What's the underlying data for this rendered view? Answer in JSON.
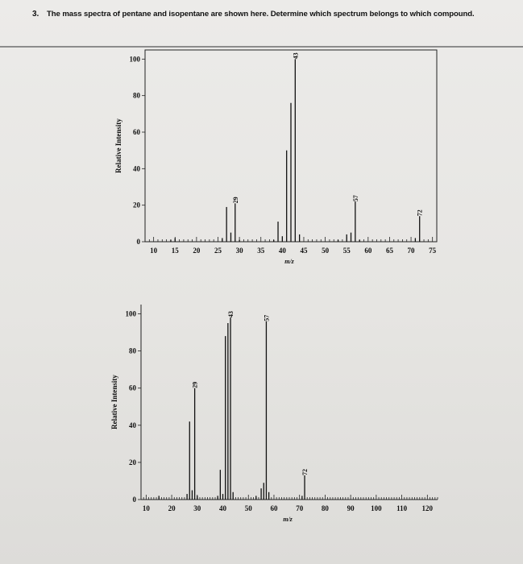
{
  "header": {
    "question_number": "3.",
    "question_text": "The mass spectra of pentane and isopentane are shown here. Determine which spectrum belongs to which compound."
  },
  "chart_data": [
    {
      "type": "bar",
      "title": "",
      "xlabel": "m/z",
      "ylabel": "Relative Intensity",
      "xlim": [
        8,
        76
      ],
      "ylim": [
        0,
        105
      ],
      "x_ticks": [
        10,
        15,
        20,
        25,
        30,
        35,
        40,
        45,
        50,
        55,
        60,
        65,
        70,
        75
      ],
      "y_ticks": [
        0,
        20,
        40,
        60,
        80,
        100
      ],
      "peak_labels": [
        {
          "x": 29,
          "text": "29"
        },
        {
          "x": 43,
          "text": "43"
        },
        {
          "x": 57,
          "text": "57"
        },
        {
          "x": 72,
          "text": "72"
        }
      ],
      "peaks": [
        {
          "x": 14,
          "y": 1
        },
        {
          "x": 15,
          "y": 2
        },
        {
          "x": 26,
          "y": 2
        },
        {
          "x": 27,
          "y": 19
        },
        {
          "x": 28,
          "y": 5
        },
        {
          "x": 29,
          "y": 21
        },
        {
          "x": 30,
          "y": 1
        },
        {
          "x": 38,
          "y": 1
        },
        {
          "x": 39,
          "y": 11
        },
        {
          "x": 40,
          "y": 3
        },
        {
          "x": 41,
          "y": 50
        },
        {
          "x": 42,
          "y": 76
        },
        {
          "x": 43,
          "y": 100
        },
        {
          "x": 44,
          "y": 4
        },
        {
          "x": 53,
          "y": 1
        },
        {
          "x": 55,
          "y": 4
        },
        {
          "x": 56,
          "y": 5
        },
        {
          "x": 57,
          "y": 22
        },
        {
          "x": 58,
          "y": 1
        },
        {
          "x": 71,
          "y": 2
        },
        {
          "x": 72,
          "y": 14
        }
      ]
    },
    {
      "type": "bar",
      "title": "",
      "xlabel": "m/z",
      "ylabel": "Relative Intensity",
      "xlim": [
        8,
        124
      ],
      "ylim": [
        0,
        105
      ],
      "x_ticks": [
        10,
        20,
        30,
        40,
        50,
        60,
        70,
        80,
        90,
        100,
        110,
        120
      ],
      "y_ticks": [
        0,
        20,
        40,
        60,
        80,
        100
      ],
      "peak_labels": [
        {
          "x": 29,
          "text": "29"
        },
        {
          "x": 43,
          "text": "43"
        },
        {
          "x": 57,
          "text": "57"
        },
        {
          "x": 72,
          "text": "72"
        }
      ],
      "peaks": [
        {
          "x": 15,
          "y": 2
        },
        {
          "x": 26,
          "y": 3
        },
        {
          "x": 27,
          "y": 42
        },
        {
          "x": 28,
          "y": 5
        },
        {
          "x": 29,
          "y": 60
        },
        {
          "x": 30,
          "y": 2
        },
        {
          "x": 38,
          "y": 2
        },
        {
          "x": 39,
          "y": 16
        },
        {
          "x": 40,
          "y": 3
        },
        {
          "x": 41,
          "y": 88
        },
        {
          "x": 42,
          "y": 95
        },
        {
          "x": 43,
          "y": 98
        },
        {
          "x": 44,
          "y": 4
        },
        {
          "x": 53,
          "y": 2
        },
        {
          "x": 55,
          "y": 6
        },
        {
          "x": 56,
          "y": 9
        },
        {
          "x": 57,
          "y": 96
        },
        {
          "x": 58,
          "y": 4
        },
        {
          "x": 71,
          "y": 2
        },
        {
          "x": 72,
          "y": 13
        }
      ]
    }
  ]
}
